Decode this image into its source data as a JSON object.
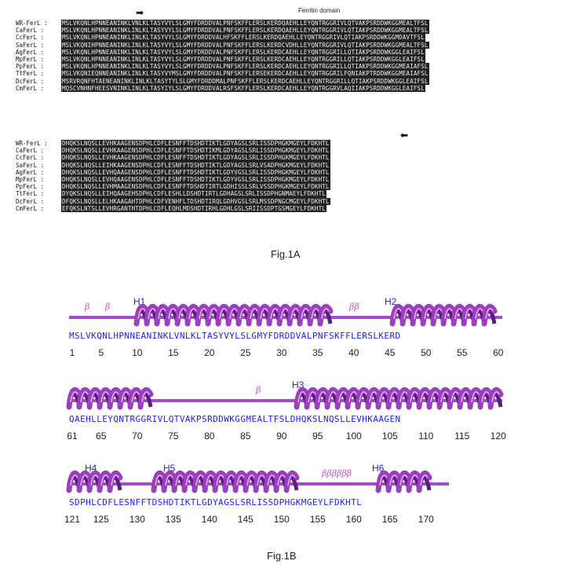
{
  "fig1a": {
    "domain_label": "Ferritin domain",
    "caption": "Fig.1A",
    "block1": [
      {
        "name": "WR-FerL :",
        "seq": "MSLVKQNLHPNNEANINKLVNLKLTASYVYLSLGMYFDRDDVALPNFSKFFLERSLKERDQAEHLLEYQNTRGGRIVLQTVAKPSRDDWKGGMEALTFSL"
      },
      {
        "name": "CaFerL :",
        "seq": "MSLVKQNLHPNNEANINKLINLKLTASYVYLSLGMYFDRDDVALPNFSKFFLERSLKERDQAEHLLEYQNTRGGRIVLQTIAKPSRDDWKGGMEALTFSL"
      },
      {
        "name": "CcFerL :",
        "seq": "MSLVKQNLHPNNEANINKLINLKLTASYVYLSLGMYFDRDDVALHFSKFFLERSLKERDQAEHLLEYQNTRGGRIVLQTIAKPSRDDWKGGMDAVTFSL"
      },
      {
        "name": "SaFerL :",
        "seq": "MSLVKQNIHPNNEANINKLINLKLTASYVYLSLGMYFDRDDVALPNFSKFFLERSLKERDCVDHLLEYQNTRGGRIVLQTIAKPSRDDWKGGMEALTFSL"
      },
      {
        "name": "AgFerL :",
        "seq": "MSLVKQNLHPNNEANINKLINLKLTASYVYLSLGMYFDRDDVALPNFSKFFLERSLKERDCAEHLLEYQNTRGGRILLQTIAKPSRDDWKGGLEAIFSL"
      },
      {
        "name": "MpFerL :",
        "seq": "MSLVKQNLHPNNEANINKLINLKLTASYVYLSLGMYFDRDDVALPNFSKFFLERSLKERDCAEHLLEYQNTRGGRILLQTIAKPSRDDWKGGLEAIFSL"
      },
      {
        "name": "PpFerL :",
        "seq": "MSLVKQNLHPNNEANINKLINLKLTASYVYLSLGMYFDRDDVALPNFSKFFLERSLKERDCAEHLLEYQNTRGGRILLQTIAKPSRDDWKGGMEAIAFSL"
      },
      {
        "name": "TtFerL :",
        "seq": "MSLVKQNIEQNNEANINKLINLKLTASYVYMSLGMYFDRDDVALPNFSKFFLERSEKERDCAEHLLEYQNTRGGRILFQNIAKPTRDDWKGGMEAIAFSL"
      },
      {
        "name": "DcFerL :",
        "seq": "MSRVRQNFHTAENEANINKLINLKLTASYTYLSLGMYFDRDDMALPNFSKFFLERSLKERDCAEHLLEYQNTRGGRILLQTIAKPSRDDWKGGLEAIFSL"
      },
      {
        "name": "CmFerL :",
        "seq": "MQSCVNHNFHEESVNINKLINLKLTASYIYLSLGMYFDRDDVALRSFSKFFLERSLKERDCAEHLLEYQNTRGGRVLAQIIAKPSRDDWKGGLEAIFSL"
      }
    ],
    "block2": [
      {
        "name": "WR-FerL :",
        "seq": "DHQKSLNQSLLEVHKAAGENSDPHLCDFLESNFFTDSHDTIKTLGDYAGSLSRLISSDPHGKMGEYLFDKHTL"
      },
      {
        "name": "CaFerL :",
        "seq": "DHQKSLNQSLLEVHKAAGENSDPHLCDFLESNFFTDSHDTIKMLGDYAGSLSRLISSDPHGKMGEYLFDKHTL"
      },
      {
        "name": "CcFerL :",
        "seq": "DHQKSLNQSLLEVHKAAGENSDPHLCDFLESNFFTDSHDTIKTLGDYAGSLSRLISSDPHGKMGEYLFDKHTL"
      },
      {
        "name": "SaFerL :",
        "seq": "DHQKSLNQSLLEIHKAAGENSDPHLCDFLESNFFTDSHDTIKTLGDYAGSLSRLVSADPHGKMGEYLFDKHTL"
      },
      {
        "name": "AgFerL :",
        "seq": "DHQKSLNQSLLEVHQAAGENSDPHLCDFLESNFFTDSHDTIKTLGDYVGSLSRLISSDPHGKMGEYLFDKHTL"
      },
      {
        "name": "MpFerL :",
        "seq": "DHQKSLNQSLLEVHQAAGENSDPHLCDFLESNFFTDSHDTIKTLGDYVGSLSRLISSDPHGKMGEYLFDKHTL"
      },
      {
        "name": "PpFerL :",
        "seq": "DHQKSLNQSLLEVHMAAGENSDPHLCDFLESNFFTDSHDTIRTLGDHISSLSRLVSSDPHGKMGEYLFDKHTL"
      },
      {
        "name": "TtFerL :",
        "seq": "DYQKSLNQSLLEIHQAAGEHSDPHLCDFLESHLLDSHDTIRTLGDHAGSLSRLISSDPHGNMAEYLFDKHTL"
      },
      {
        "name": "DcFerL :",
        "seq": "DFQKSLNQSLLELHKAAGAHTDPHLCDFVENHFLTDSHDTIRQLGDHVGSLSRLMSSDPNGCMGEYLFDKHTL"
      },
      {
        "name": "CmFerL :",
        "seq": "EFQKSLNTSLLEVHRGANTHTDPHLCDFLEQHLMDSHDTIRHLGDHLGSLSRIISSDPTGSMGEYLFDKHTL"
      }
    ]
  },
  "fig1b": {
    "caption": "Fig.1B",
    "helix_color": "#9b3fc0",
    "coil_color": "#a24dc7",
    "seq_color": "#1c1cff",
    "rows": [
      {
        "seq": "MSLVKQNLHPNNEANINKLVNLKLTASYVYLSLGMYFDRDDVALPNFSKFFLERSLKERD",
        "ticks": [
          "1",
          "5",
          "10",
          "15",
          "20",
          "25",
          "30",
          "35",
          "40",
          "45",
          "50",
          "55",
          "60"
        ],
        "helix_labels": [
          "H1",
          "H2"
        ],
        "beta_labels": [
          "β",
          "β",
          "ββ"
        ]
      },
      {
        "seq": "QAEHLLEYQNTRGGRIVLQTVAKPSRDDWKGGMEALTFSLDHQKSLNQSLLEVHKAAGEN",
        "ticks": [
          "61",
          "65",
          "70",
          "75",
          "80",
          "85",
          "90",
          "95",
          "100",
          "105",
          "110",
          "115",
          "120"
        ],
        "helix_labels": [
          "H3"
        ],
        "beta_labels": [
          "β"
        ]
      },
      {
        "seq": "SDPHLCDFLESNFFTDSHDTIKTLGDYAGSLSRLISSDPHGKMGEYLFDKHTL",
        "ticks": [
          "121",
          "125",
          "130",
          "135",
          "140",
          "145",
          "150",
          "155",
          "160",
          "165",
          "170"
        ],
        "helix_labels": [
          "H4",
          "H5",
          "H6"
        ],
        "beta_labels": [
          "ββββββ"
        ]
      }
    ]
  }
}
